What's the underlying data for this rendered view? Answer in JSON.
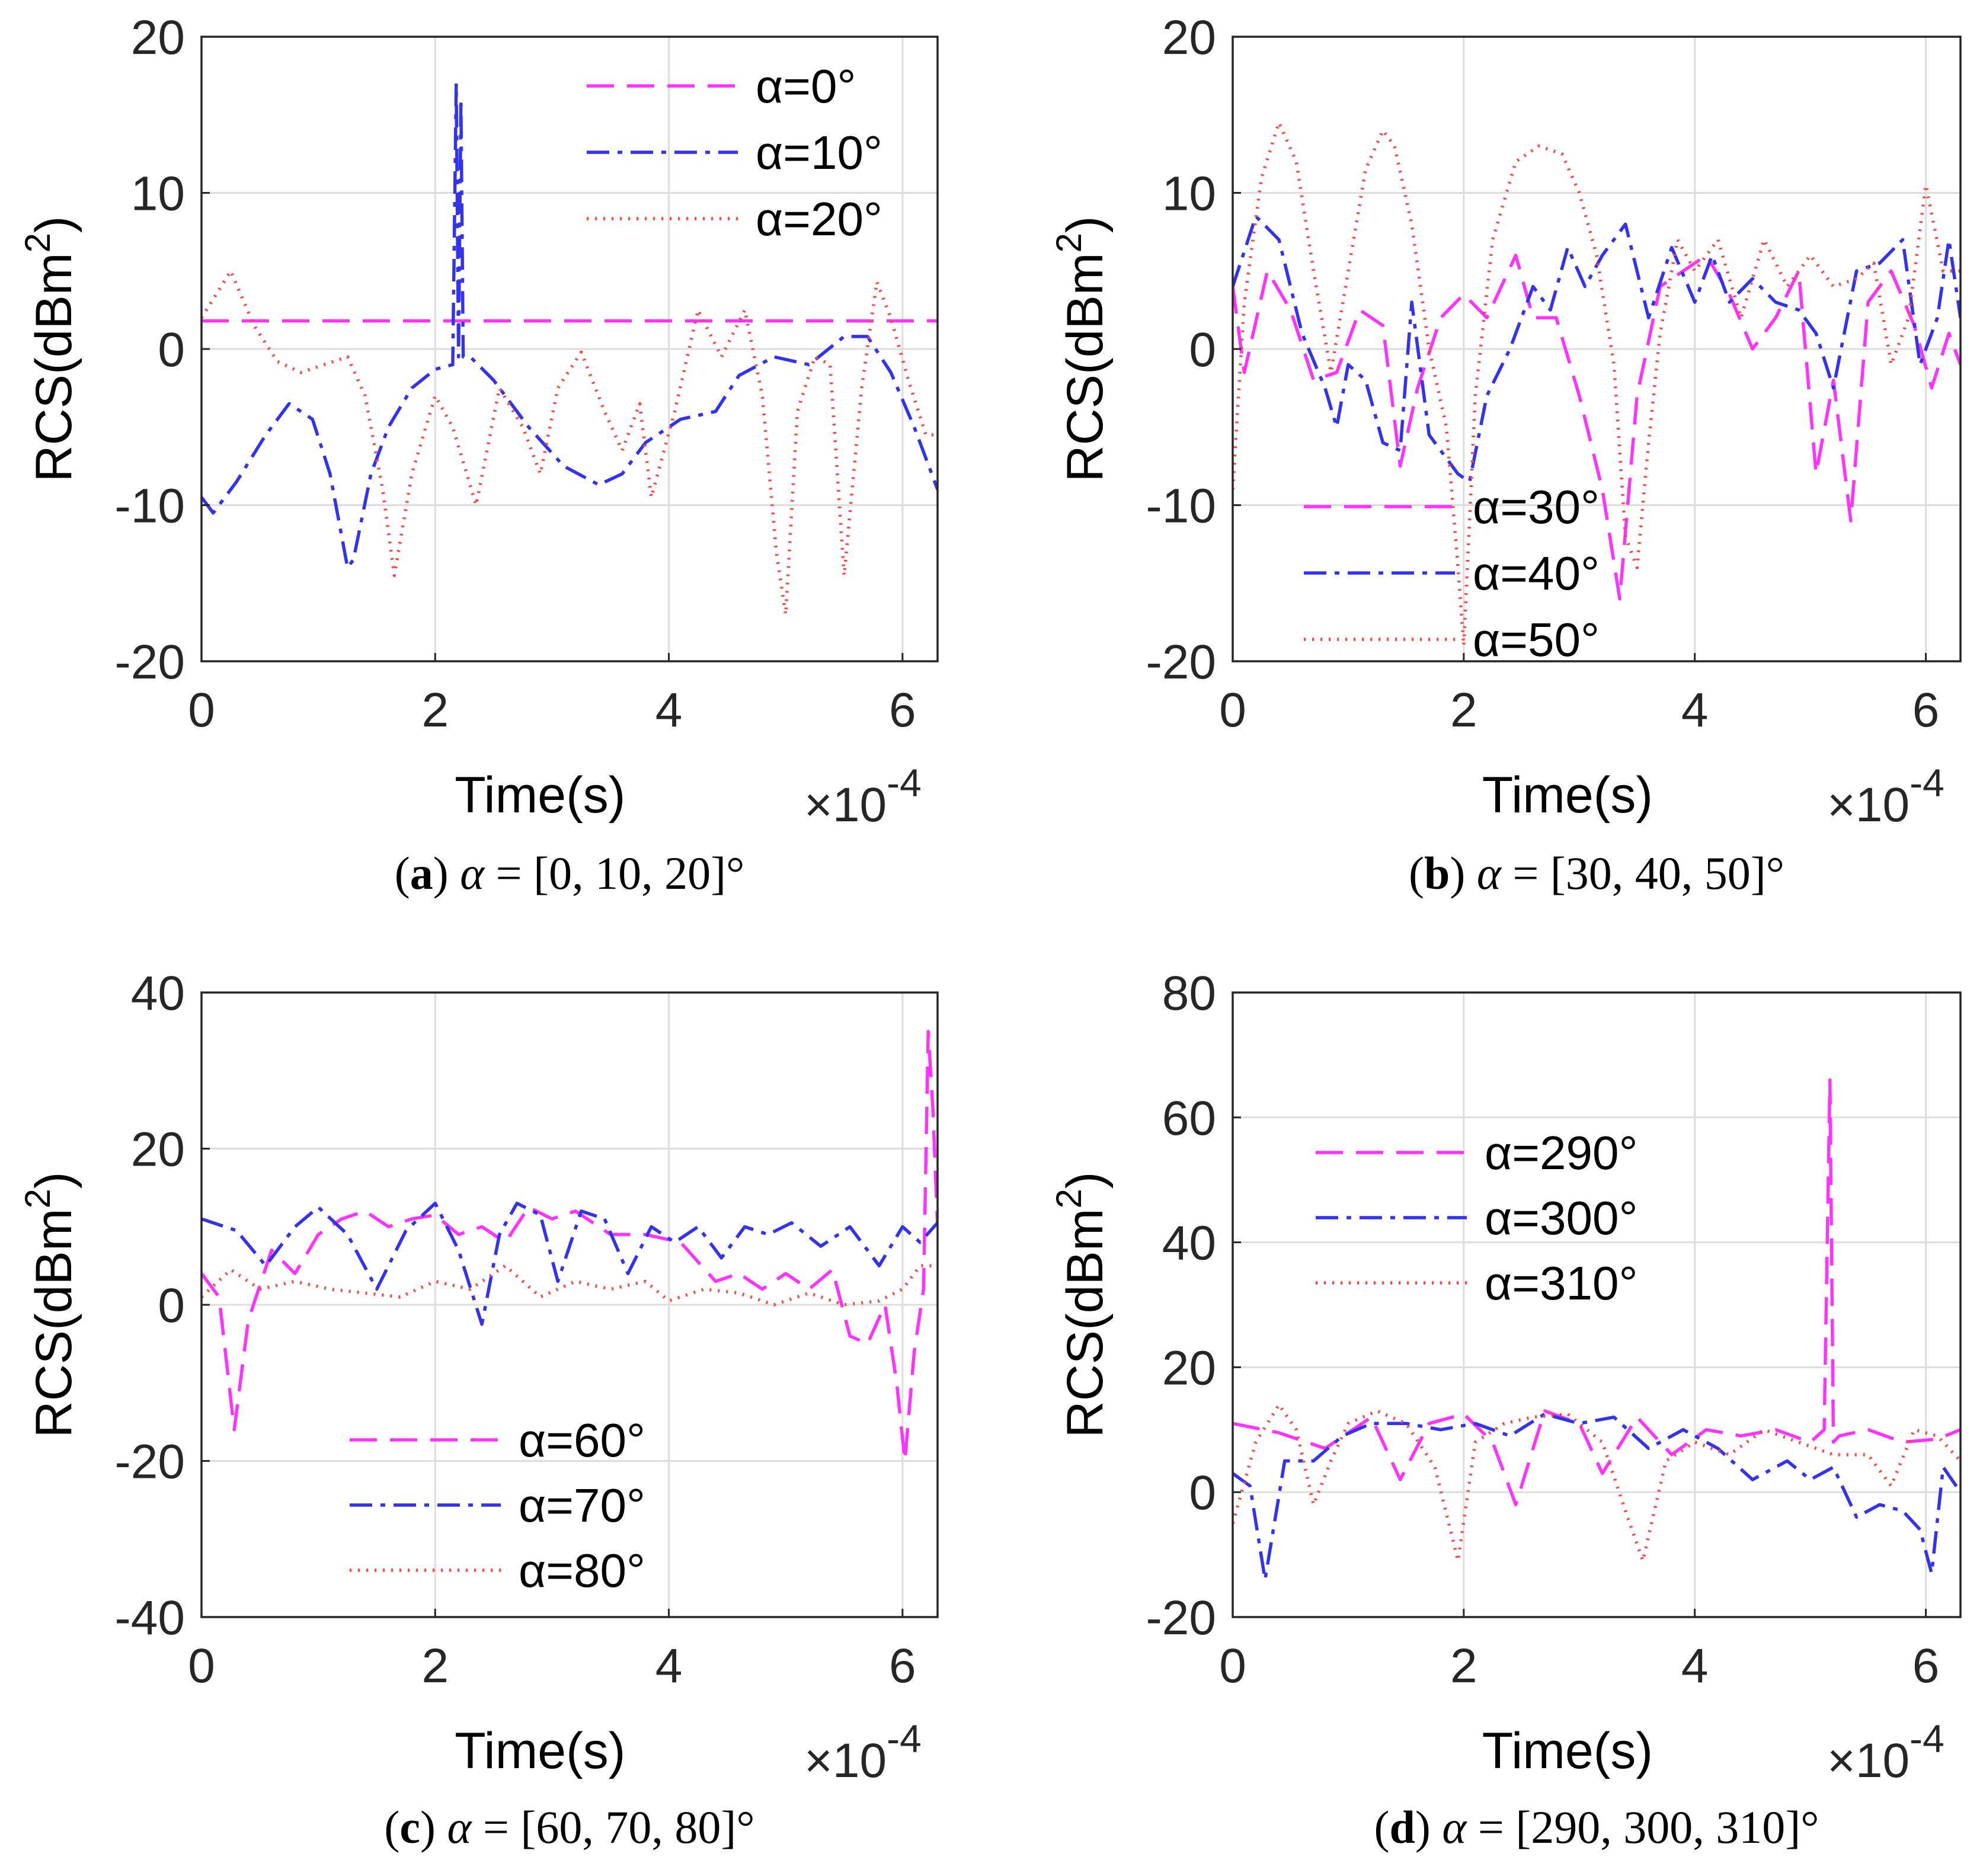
{
  "chart_data": [
    {
      "type": "line",
      "panel_letter": "a",
      "caption": "α = [0, 10, 20]°",
      "xlabel": "Time(s)",
      "ylabel": "RCS(dBm²)",
      "x_scale_label": "×10",
      "x_scale_exponent": "-4",
      "xlim": [
        0,
        6.3
      ],
      "ylim": [
        -20,
        20
      ],
      "xticks": [
        0,
        2,
        4,
        6
      ],
      "yticks": [
        -20,
        -10,
        0,
        10,
        20
      ],
      "grid": true,
      "legend_position": "top-right",
      "series": [
        {
          "name": "α=0°",
          "style": "dashed",
          "color": "#ff33ff",
          "x": [
            0,
            6.3
          ],
          "y": [
            1.8,
            1.8
          ]
        },
        {
          "name": "α=10°",
          "style": "dashdot",
          "color": "#3333ee",
          "x": [
            0,
            0.1,
            0.3,
            0.55,
            0.75,
            0.95,
            1.1,
            1.25,
            1.3,
            1.45,
            1.6,
            1.8,
            2.0,
            2.15,
            2.18,
            2.2,
            2.22,
            2.24,
            2.3,
            2.5,
            2.8,
            3.1,
            3.4,
            3.6,
            3.8,
            4.1,
            4.4,
            4.6,
            4.9,
            5.2,
            5.5,
            5.7,
            5.9,
            6.1,
            6.3
          ],
          "y": [
            -9.5,
            -10.5,
            -8.5,
            -5.5,
            -3.5,
            -4.5,
            -8,
            -14,
            -13.5,
            -8,
            -5,
            -2.5,
            -1.3,
            -1,
            17,
            -0.5,
            16,
            -0.5,
            -0.5,
            -2,
            -5,
            -7.5,
            -8.7,
            -8,
            -6,
            -4.5,
            -4,
            -1.7,
            -0.5,
            -1,
            0.8,
            0.8,
            -1.5,
            -5,
            -9
          ]
        },
        {
          "name": "α=20°",
          "style": "dotted",
          "color": "#ff4444",
          "x": [
            0,
            0.25,
            0.45,
            0.65,
            0.85,
            1.05,
            1.25,
            1.4,
            1.55,
            1.65,
            1.8,
            2.0,
            2.15,
            2.35,
            2.55,
            2.75,
            2.9,
            3.05,
            3.25,
            3.45,
            3.6,
            3.75,
            3.85,
            4.05,
            4.25,
            4.45,
            4.65,
            4.8,
            4.92,
            5.0,
            5.1,
            5.25,
            5.38,
            5.5,
            5.65,
            5.78,
            5.9,
            6.05,
            6.2,
            6.3
          ],
          "y": [
            2,
            5,
            1.5,
            -0.8,
            -1.5,
            -1,
            -0.5,
            -3,
            -9,
            -14.5,
            -8,
            -3,
            -5,
            -10,
            -2.5,
            -5,
            -8,
            -2.5,
            -0.2,
            -4,
            -6.5,
            -3.5,
            -9.5,
            -4,
            2.5,
            -0.5,
            2.5,
            -3,
            -13,
            -17,
            -4,
            -0.5,
            -1,
            -14.5,
            -2.5,
            4.3,
            2,
            -2,
            -5.5,
            -5.5
          ]
        }
      ]
    },
    {
      "type": "line",
      "panel_letter": "b",
      "caption": "α = [30, 40, 50]°",
      "xlabel": "Time(s)",
      "ylabel": "RCS(dBm²)",
      "x_scale_label": "×10",
      "x_scale_exponent": "-4",
      "xlim": [
        0,
        6.3
      ],
      "ylim": [
        -20,
        20
      ],
      "xticks": [
        0,
        2,
        4,
        6
      ],
      "yticks": [
        -20,
        -10,
        0,
        10,
        20
      ],
      "grid": true,
      "legend_position": "bottom-center",
      "series": [
        {
          "name": "α=30°",
          "style": "dashed",
          "color": "#ff33ff",
          "x": [
            0,
            0.1,
            0.3,
            0.5,
            0.7,
            0.9,
            1.1,
            1.3,
            1.45,
            1.6,
            1.8,
            2.0,
            2.2,
            2.45,
            2.6,
            2.8,
            3.0,
            3.2,
            3.35,
            3.5,
            3.7,
            3.9,
            4.1,
            4.3,
            4.5,
            4.7,
            4.9,
            5.05,
            5.2,
            5.35,
            5.5,
            5.7,
            5.9,
            6.05,
            6.2,
            6.3
          ],
          "y": [
            4,
            -1.5,
            5,
            2.5,
            -2,
            -1.5,
            2.5,
            1.5,
            -7.5,
            -2.5,
            2,
            3.5,
            2,
            6,
            2,
            2,
            -3,
            -9,
            -16,
            -3,
            4,
            5,
            6,
            3.5,
            0,
            2,
            5,
            -8,
            -2,
            -11,
            3,
            5,
            1.5,
            -2.5,
            1,
            -1
          ]
        },
        {
          "name": "α=40°",
          "style": "dashdot",
          "color": "#3333ee",
          "x": [
            0,
            0.2,
            0.4,
            0.6,
            0.8,
            0.9,
            1.0,
            1.15,
            1.3,
            1.45,
            1.55,
            1.7,
            1.85,
            1.95,
            2.05,
            2.2,
            2.4,
            2.6,
            2.75,
            2.9,
            3.05,
            3.2,
            3.4,
            3.6,
            3.8,
            4.0,
            4.15,
            4.3,
            4.5,
            4.7,
            4.9,
            5.05,
            5.2,
            5.4,
            5.6,
            5.8,
            5.95,
            6.1,
            6.2,
            6.3
          ],
          "y": [
            4,
            8.5,
            7,
            1,
            -2.5,
            -5,
            -1,
            -2,
            -6,
            -6.5,
            3,
            -5.5,
            -7,
            -8,
            -8.5,
            -3,
            0,
            4,
            2.5,
            6.5,
            4,
            6,
            8,
            2,
            6.5,
            3,
            6,
            3,
            4.5,
            3,
            2.5,
            1,
            -2.5,
            5,
            5.5,
            7,
            -1,
            2,
            7,
            2
          ]
        },
        {
          "name": "α=50°",
          "style": "dotted",
          "color": "#ff4444",
          "x": [
            0,
            0.1,
            0.25,
            0.4,
            0.55,
            0.7,
            0.85,
            1.0,
            1.15,
            1.3,
            1.4,
            1.55,
            1.7,
            1.85,
            1.95,
            2.0,
            2.1,
            2.25,
            2.45,
            2.65,
            2.85,
            3.0,
            3.15,
            3.3,
            3.4,
            3.5,
            3.6,
            3.7,
            3.85,
            4.0,
            4.2,
            4.4,
            4.6,
            4.8,
            5.0,
            5.2,
            5.4,
            5.55,
            5.7,
            5.85,
            6.0,
            6.15,
            6.3
          ],
          "y": [
            -9,
            3,
            11,
            14.5,
            12,
            5,
            -1.5,
            5,
            11.5,
            14,
            13,
            8,
            0,
            -5,
            -14,
            -19,
            -3,
            7,
            12,
            13,
            12.5,
            10,
            6,
            -1,
            -12,
            -14,
            -6,
            1,
            7,
            5,
            7,
            2,
            7,
            4,
            6,
            4,
            4.5,
            5.5,
            -1,
            2,
            10.5,
            5,
            5
          ]
        }
      ]
    },
    {
      "type": "line",
      "panel_letter": "c",
      "caption": "α = [60, 70, 80]°",
      "xlabel": "Time(s)",
      "ylabel": "RCS(dBm²)",
      "x_scale_label": "×10",
      "x_scale_exponent": "-4",
      "xlim": [
        0,
        6.3
      ],
      "ylim": [
        -40,
        40
      ],
      "xticks": [
        0,
        2,
        4,
        6
      ],
      "yticks": [
        -40,
        -20,
        0,
        20,
        40
      ],
      "grid": true,
      "legend_position": "bottom-center",
      "series": [
        {
          "name": "α=60°",
          "style": "dashed",
          "color": "#ff33ff",
          "x": [
            0,
            0.15,
            0.28,
            0.4,
            0.6,
            0.8,
            1.0,
            1.2,
            1.4,
            1.6,
            1.8,
            2.0,
            2.2,
            2.4,
            2.6,
            2.8,
            3.0,
            3.2,
            3.5,
            3.8,
            4.1,
            4.4,
            4.6,
            4.8,
            5.0,
            5.2,
            5.4,
            5.55,
            5.7,
            5.85,
            5.95,
            6.02,
            6.1,
            6.18,
            6.22,
            6.26,
            6.3
          ],
          "y": [
            4,
            1,
            -16,
            -2,
            7,
            4,
            9,
            11,
            12,
            10,
            11,
            11.5,
            9,
            10,
            8,
            12.5,
            11,
            12,
            9,
            9,
            8,
            3,
            4,
            2,
            4,
            2,
            4.5,
            -4,
            -5,
            0,
            -10,
            -20,
            -6,
            2,
            35,
            25,
            10
          ]
        },
        {
          "name": "α=70°",
          "style": "dashdot",
          "color": "#3333ee",
          "x": [
            0,
            0.3,
            0.55,
            0.8,
            1.0,
            1.25,
            1.5,
            1.75,
            2.0,
            2.2,
            2.4,
            2.55,
            2.7,
            2.9,
            3.05,
            3.25,
            3.45,
            3.65,
            3.85,
            4.05,
            4.25,
            4.45,
            4.65,
            4.85,
            5.05,
            5.3,
            5.55,
            5.8,
            6.0,
            6.15,
            6.3
          ],
          "y": [
            11,
            9.5,
            5,
            10,
            12.5,
            9,
            2,
            9.5,
            13,
            7,
            -2.5,
            9,
            13,
            11.5,
            3,
            12,
            11,
            4,
            10,
            8,
            10,
            6,
            10,
            9,
            10.5,
            7.5,
            10,
            5,
            10,
            8,
            10.5
          ]
        },
        {
          "name": "α=80°",
          "style": "dotted",
          "color": "#ff4444",
          "x": [
            0,
            0.25,
            0.5,
            0.8,
            1.1,
            1.4,
            1.7,
            2.0,
            2.3,
            2.6,
            2.9,
            3.2,
            3.5,
            3.8,
            4.0,
            4.3,
            4.6,
            4.9,
            5.2,
            5.5,
            5.8,
            6.0,
            6.15,
            6.3
          ],
          "y": [
            1,
            4.5,
            2,
            3,
            2,
            1.5,
            1,
            3,
            2,
            5,
            1,
            3,
            2,
            3,
            0.5,
            2,
            1.5,
            0,
            1.5,
            0,
            0.5,
            2,
            5,
            5
          ]
        }
      ]
    },
    {
      "type": "line",
      "panel_letter": "d",
      "caption": "α = [290, 300, 310]°",
      "xlabel": "Time(s)",
      "ylabel": "RCS(dBm²)",
      "x_scale_label": "×10",
      "x_scale_exponent": "-4",
      "xlim": [
        0,
        6.3
      ],
      "ylim": [
        -20,
        80
      ],
      "xticks": [
        0,
        2,
        4,
        6
      ],
      "yticks": [
        -20,
        0,
        20,
        40,
        60,
        80
      ],
      "grid": true,
      "legend_position": "top-left",
      "series": [
        {
          "name": "α=290°",
          "style": "dashed",
          "color": "#ff33ff",
          "x": [
            0,
            0.4,
            0.8,
            1.2,
            1.45,
            1.7,
            2.0,
            2.25,
            2.45,
            2.7,
            3.0,
            3.2,
            3.5,
            3.8,
            4.1,
            4.4,
            4.7,
            5.0,
            5.12,
            5.17,
            5.2,
            5.25,
            5.5,
            5.8,
            6.1,
            6.3
          ],
          "y": [
            11,
            9.5,
            7,
            12,
            2,
            11,
            12.5,
            8,
            -2,
            13,
            11,
            3,
            12,
            6,
            10,
            9,
            10,
            8,
            10,
            66,
            8,
            9,
            10,
            8,
            8.5,
            10
          ]
        },
        {
          "name": "α=300°",
          "style": "dashdot",
          "color": "#3333ee",
          "x": [
            0,
            0.15,
            0.28,
            0.45,
            0.7,
            0.95,
            1.2,
            1.5,
            1.8,
            2.1,
            2.4,
            2.7,
            3.0,
            3.3,
            3.6,
            3.9,
            4.2,
            4.5,
            4.8,
            5.0,
            5.2,
            5.4,
            5.6,
            5.8,
            5.95,
            6.05,
            6.15,
            6.3
          ],
          "y": [
            3,
            1,
            -14,
            5,
            5,
            9,
            11,
            11,
            10,
            11,
            9,
            12.5,
            11,
            12,
            7,
            10,
            7,
            2,
            5,
            2,
            4,
            -4,
            -2,
            -3,
            -6,
            -13,
            4,
            0
          ]
        },
        {
          "name": "α=310°",
          "style": "dotted",
          "color": "#ff4444",
          "x": [
            0,
            0.2,
            0.4,
            0.55,
            0.7,
            0.85,
            1.0,
            1.25,
            1.5,
            1.75,
            1.95,
            2.1,
            2.35,
            2.6,
            2.9,
            3.2,
            3.4,
            3.55,
            3.75,
            4.0,
            4.3,
            4.6,
            4.9,
            5.2,
            5.5,
            5.7,
            5.9,
            6.1,
            6.3
          ],
          "y": [
            -5,
            8,
            14,
            10,
            -2,
            5,
            11,
            13,
            11,
            4,
            -11,
            8,
            11,
            12,
            12.5,
            8,
            -3,
            -11,
            5,
            8,
            6,
            10,
            8,
            6,
            6,
            1,
            10,
            9,
            5
          ]
        }
      ]
    }
  ]
}
